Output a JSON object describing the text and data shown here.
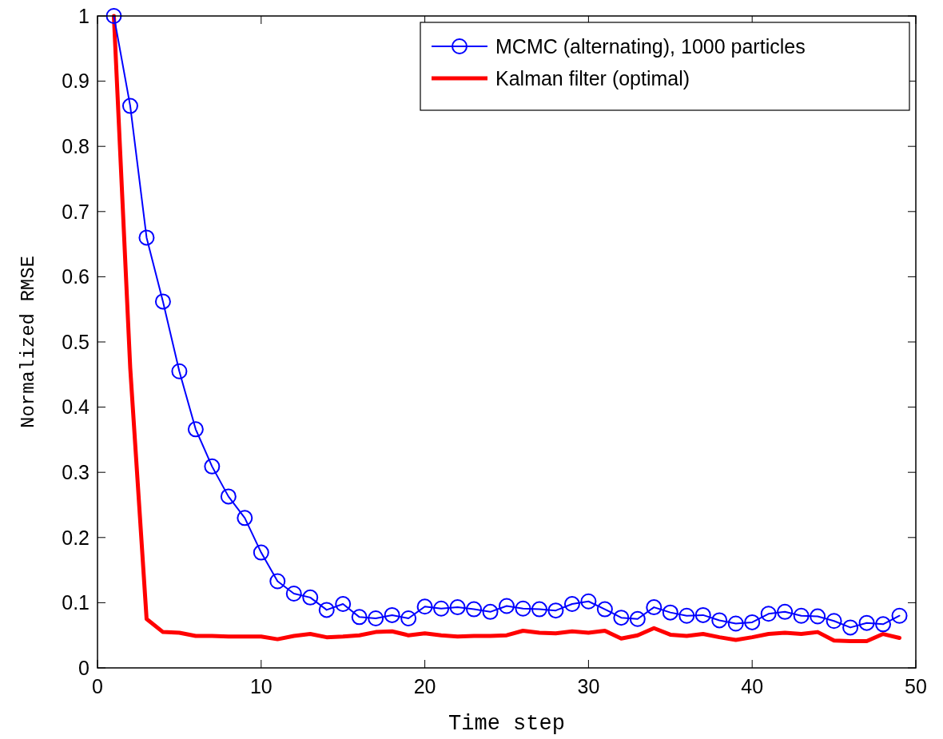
{
  "chart_data": {
    "type": "line",
    "xlabel": "Time step",
    "ylabel": "Normalized RMSE",
    "x": [
      1,
      2,
      3,
      4,
      5,
      6,
      7,
      8,
      9,
      10,
      11,
      12,
      13,
      14,
      15,
      16,
      17,
      18,
      19,
      20,
      21,
      22,
      23,
      24,
      25,
      26,
      27,
      28,
      29,
      30,
      31,
      32,
      33,
      34,
      35,
      36,
      37,
      38,
      39,
      40,
      41,
      42,
      43,
      44,
      45,
      46,
      47,
      48,
      49
    ],
    "series": [
      {
        "name": "MCMC (alternating), 1000 particles",
        "color": "#0000ff",
        "marker": "circle",
        "values": [
          1.0,
          0.862,
          0.66,
          0.562,
          0.455,
          0.366,
          0.309,
          0.263,
          0.23,
          0.177,
          0.133,
          0.114,
          0.108,
          0.089,
          0.098,
          0.078,
          0.076,
          0.081,
          0.076,
          0.094,
          0.091,
          0.093,
          0.09,
          0.086,
          0.095,
          0.091,
          0.09,
          0.088,
          0.098,
          0.102,
          0.09,
          0.077,
          0.075,
          0.093,
          0.085,
          0.08,
          0.081,
          0.073,
          0.068,
          0.07,
          0.083,
          0.086,
          0.08,
          0.079,
          0.072,
          0.062,
          0.069,
          0.067,
          0.08
        ]
      },
      {
        "name": "Kalman filter (optimal)",
        "color": "#ff0000",
        "marker": "none",
        "values": [
          1.0,
          0.46,
          0.075,
          0.055,
          0.054,
          0.049,
          0.049,
          0.048,
          0.048,
          0.048,
          0.044,
          0.049,
          0.052,
          0.047,
          0.048,
          0.05,
          0.055,
          0.056,
          0.05,
          0.053,
          0.05,
          0.048,
          0.049,
          0.049,
          0.05,
          0.057,
          0.054,
          0.053,
          0.056,
          0.054,
          0.057,
          0.045,
          0.05,
          0.061,
          0.051,
          0.049,
          0.052,
          0.047,
          0.043,
          0.047,
          0.052,
          0.054,
          0.052,
          0.055,
          0.042,
          0.041,
          0.041,
          0.052,
          0.046
        ]
      }
    ],
    "xlim": [
      0,
      50
    ],
    "xticks": [
      0,
      10,
      20,
      30,
      40,
      50
    ],
    "ylim": [
      0,
      1
    ],
    "yticks": [
      0,
      0.1,
      0.2,
      0.3,
      0.4,
      0.5,
      0.6,
      0.7,
      0.8,
      0.9,
      1
    ],
    "grid": false,
    "legend": "top right"
  }
}
